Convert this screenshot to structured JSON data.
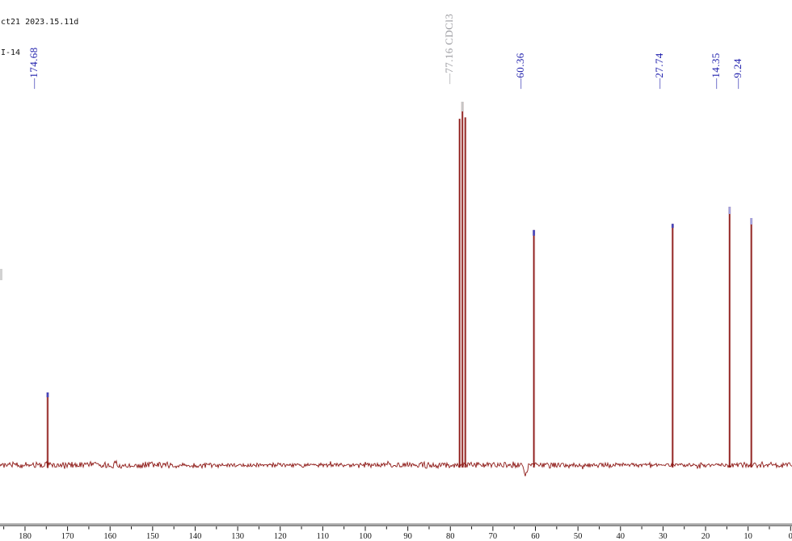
{
  "metadata": {
    "line1": "ct21 2023.15.11d",
    "line2": "I-14"
  },
  "colors": {
    "trace_red": "#8e1a17",
    "label_blue": "#2121ad",
    "label_gray": "#9d9da2",
    "axis_band": "#b2b2b2",
    "axis_edge": "#5f5f5f",
    "axis_text": "#141414",
    "meta_text": "#141414",
    "edge_mark": "#d2d2d2",
    "tip_blue": "#4646bc",
    "tip_lavender": "#a2a2de",
    "tip_gray": "#c6c6c6"
  },
  "chart_data": {
    "type": "line",
    "subtype": "13C NMR spectrum trace",
    "x_axis": {
      "unit": "ppm",
      "direction": "reversed",
      "major_ticks": [
        180,
        170,
        160,
        150,
        140,
        130,
        120,
        110,
        100,
        90,
        80,
        70,
        60,
        50,
        40,
        30,
        20,
        10,
        0
      ],
      "minor_tick_step": 5,
      "visible_range": [
        186,
        -0.3
      ]
    },
    "y_axis": {
      "visible": false
    },
    "grid": false,
    "legend": false,
    "annotations": [
      "ct21 2023.15.11d",
      "I-14"
    ],
    "peaks": [
      {
        "ppm": 174.68,
        "label": "174.68",
        "rel_height": 0.2,
        "label_color": "label_blue",
        "tip_color": "tip_blue",
        "tip_len": 6
      },
      {
        "ppm": 77.16,
        "label": "77.16 CDCl3",
        "rel_height": 1.0,
        "label_color": "label_gray",
        "tip_color": "tip_gray",
        "tip_len": 12,
        "multiplet_offsets_ppm": [
          -0.67,
          0,
          0.67
        ],
        "multiplet_rel_heights": [
          0.957,
          1.0,
          0.953
        ]
      },
      {
        "ppm": 60.36,
        "label": "60.36",
        "rel_height": 0.647,
        "label_color": "label_blue",
        "tip_color": "tip_blue",
        "tip_len": 7
      },
      {
        "ppm": 27.74,
        "label": "27.74",
        "rel_height": 0.664,
        "label_color": "label_blue",
        "tip_color": "tip_blue",
        "tip_len": 5
      },
      {
        "ppm": 14.35,
        "label": "14.35",
        "rel_height": 0.711,
        "label_color": "label_blue",
        "tip_color": "tip_lavender",
        "tip_len": 9
      },
      {
        "ppm": 9.24,
        "label": "9.24",
        "rel_height": 0.68,
        "label_color": "label_blue",
        "tip_color": "tip_lavender",
        "tip_len": 8
      }
    ],
    "baseline_features": [
      {
        "ppm_center": 62.3,
        "type": "negative_dip",
        "rel_depth": 0.031
      }
    ],
    "noise": {
      "description": "dense random noise band along baseline"
    }
  }
}
